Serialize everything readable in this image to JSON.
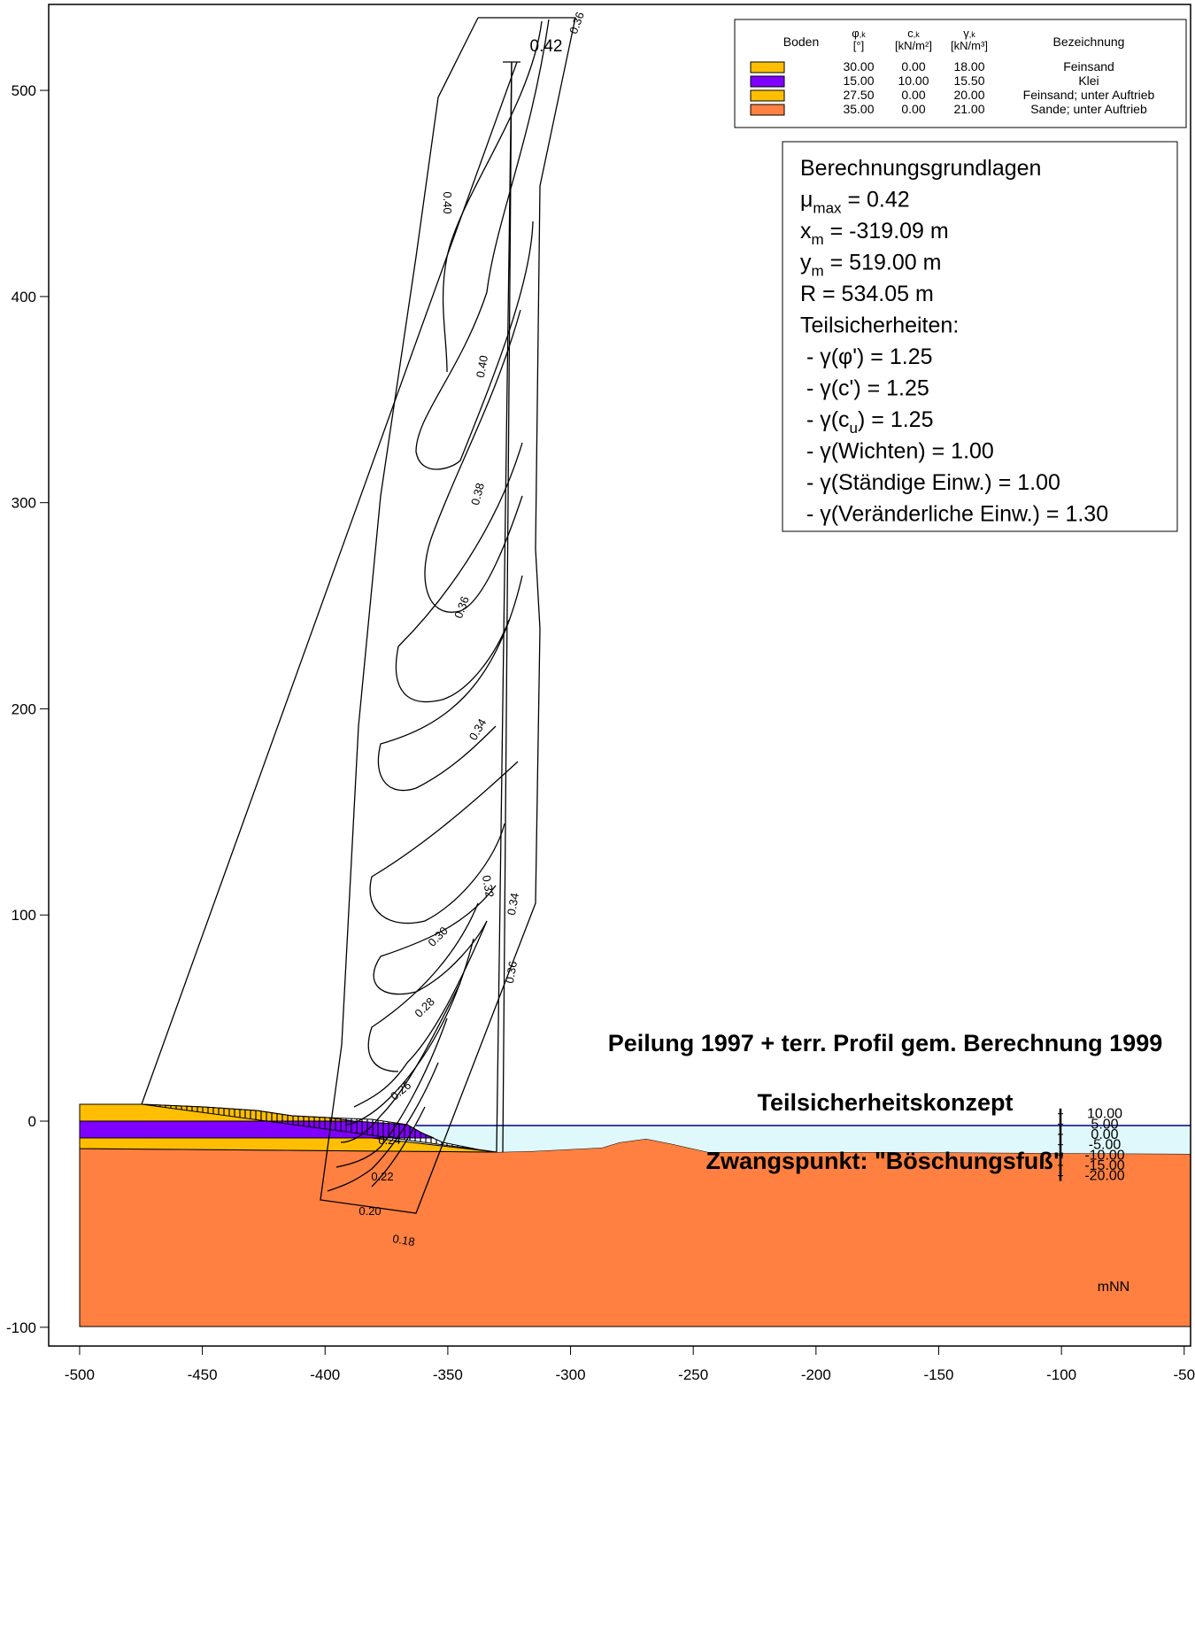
{
  "axes": {
    "xlim": [
      -512.6,
      -47.4
    ],
    "ylim": [
      -109.1,
      541.7
    ],
    "xticks": [
      -500,
      -450,
      -400,
      -350,
      -300,
      -250,
      -200,
      -150,
      -100,
      -50
    ],
    "yticks": [
      -100,
      0,
      100,
      200,
      300,
      400,
      500
    ]
  },
  "legend": {
    "headers": [
      "Boden",
      {
        "symbol": "φ",
        "sub": ",k",
        "unit": "[°]"
      },
      {
        "symbol": "c",
        "sub": ",k",
        "unit": "[kN/m²]"
      },
      {
        "symbol": "γ",
        "sub": ",k",
        "unit": "[kN/m³]"
      },
      "Bezeichnung"
    ],
    "rows": [
      {
        "color": "#ffbf00",
        "phi": "30.00",
        "c": "0.00",
        "gamma": "18.00",
        "name": "Feinsand"
      },
      {
        "color": "#8000ff",
        "phi": "15.00",
        "c": "10.00",
        "gamma": "15.50",
        "name": "Klei"
      },
      {
        "color": "#ffbf00",
        "phi": "27.50",
        "c": "0.00",
        "gamma": "20.00",
        "name": "Feinsand; unter Auftrieb"
      },
      {
        "color": "#ff8040",
        "phi": "35.00",
        "c": "0.00",
        "gamma": "21.00",
        "name": "Sande; unter Auftrieb"
      }
    ]
  },
  "info": {
    "lines": [
      [
        {
          "text": "Berechnungsgrundlagen"
        }
      ],
      [
        {
          "text": "μ"
        },
        {
          "sub": "max"
        },
        {
          "text": " = 0.42"
        }
      ],
      [
        {
          "text": "x"
        },
        {
          "sub": "m"
        },
        {
          "text": " = -319.09 m"
        }
      ],
      [
        {
          "text": "y"
        },
        {
          "sub": "m"
        },
        {
          "text": " = 519.00 m"
        }
      ],
      [
        {
          "text": "R = 534.05 m"
        }
      ],
      [
        {
          "text": "Teilsicherheiten:"
        }
      ],
      [
        {
          "text": " - γ(φ') = 1.25"
        }
      ],
      [
        {
          "text": " - γ(c') = 1.25"
        }
      ],
      [
        {
          "text": " - γ(c"
        },
        {
          "sub": "u"
        },
        {
          "text": ") = 1.25"
        }
      ],
      [
        {
          "text": " - γ(Wichten) = 1.00"
        }
      ],
      [
        {
          "text": " - γ(Ständige Einw.) = 1.00"
        }
      ],
      [
        {
          "text": " - γ(Veränderliche Einw.) = 1.30"
        }
      ]
    ]
  },
  "titles": [
    "Peilung 1997 + terr. Profil gem. Berechnung 1999",
    "Teilsicherheitskonzept",
    "Zwangspunkt: \"Böschungsfuß\""
  ],
  "contour_labels": [
    "0.36",
    "0.42",
    "0.40",
    "0.40",
    "0.38",
    "0.36",
    "0.34",
    "0.32",
    "0.34",
    "0.30",
    "0.36",
    "0.28",
    "0.26",
    "0.24",
    "0.22",
    "0.20",
    "0.18"
  ],
  "level_scale": {
    "unit": "mNN",
    "ticks": [
      {
        "value": 10,
        "label": "10.00"
      },
      {
        "value": 5,
        "label": "5.00"
      },
      {
        "value": 0,
        "label": "0.00"
      },
      {
        "value": -5,
        "label": "-5.00"
      },
      {
        "value": -10,
        "label": "-10.00"
      },
      {
        "value": -15,
        "label": "-15.00"
      },
      {
        "value": -20,
        "label": "-20.00"
      }
    ]
  }
}
